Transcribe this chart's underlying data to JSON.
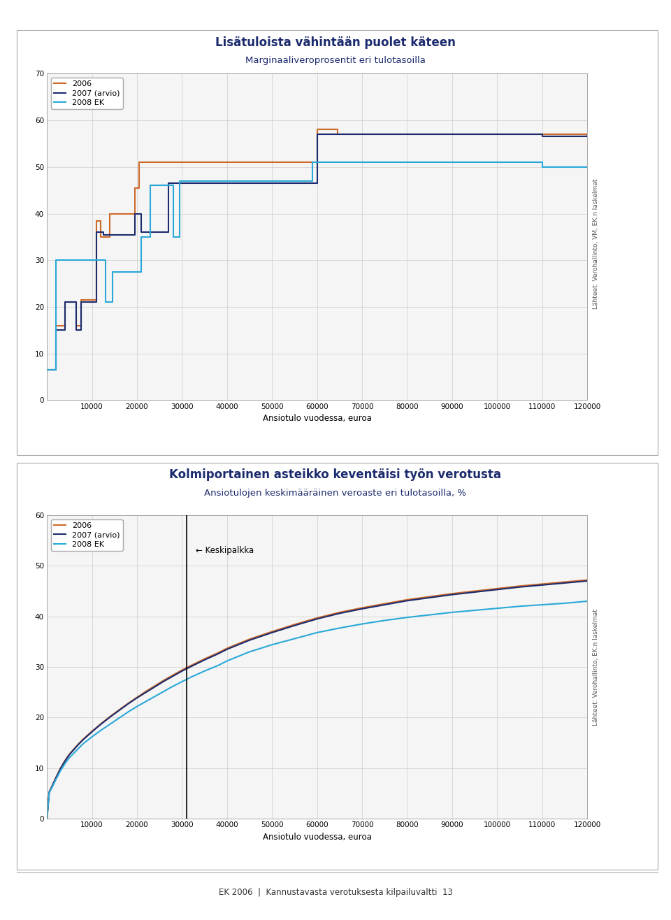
{
  "title1": "Lisätuloista vähintään puolet käteen",
  "subtitle1": "Marginaaliveroprosentit eri tulotasoilla",
  "title2": "Kolmiportainen asteikko keventäisi työn verotusta",
  "subtitle2": "Ansiotulojen keskimääräinen veroaste eri tulotasoilla, %",
  "xlabel": "Ansiotulo vuodessa, euroa",
  "footnote1": "Lähteet: Verohallinto, VM, EK:n laskelmat",
  "footnote2": "Lähteet: Verohallinto, EK:n laskelmat",
  "footer": "EK 2006  |  Kannustavasta verotuksesta kilpailuvaltti  13",
  "color_2006": "#CD6A2A",
  "color_2007": "#1C2B6E",
  "color_2008": "#29A8D8",
  "keskipalkka_x": 31000,
  "bg_color": "#F0F0F0",
  "chart1": {
    "ylim": [
      0,
      70
    ],
    "yticks": [
      0,
      10,
      20,
      30,
      40,
      50,
      60,
      70
    ],
    "xlim": [
      0,
      120000
    ],
    "xticks": [
      0,
      10000,
      20000,
      30000,
      40000,
      50000,
      60000,
      70000,
      80000,
      90000,
      100000,
      110000,
      120000
    ],
    "line_2006_x": [
      0,
      2000,
      2000,
      4000,
      4000,
      6500,
      6500,
      7500,
      7500,
      11000,
      11000,
      12000,
      12000,
      14000,
      14000,
      19500,
      19500,
      20500,
      20500,
      35000,
      35000,
      60000,
      60000,
      64500,
      64500,
      110000,
      110000,
      120000
    ],
    "line_2006_y": [
      6.5,
      6.5,
      16,
      16,
      21,
      21,
      16,
      16,
      21.5,
      21.5,
      38.5,
      38.5,
      35,
      35,
      40,
      40,
      45.5,
      45.5,
      51,
      51,
      51,
      51,
      58,
      58,
      57,
      57,
      57,
      56.5
    ],
    "line_2007_x": [
      0,
      2000,
      2000,
      4000,
      4000,
      6500,
      6500,
      7500,
      7500,
      11000,
      11000,
      12500,
      12500,
      19500,
      19500,
      21000,
      21000,
      27000,
      27000,
      35500,
      35500,
      60000,
      60000,
      64500,
      64500,
      110000,
      110000,
      120000
    ],
    "line_2007_y": [
      6.5,
      6.5,
      15,
      15,
      21,
      21,
      15,
      15,
      21,
      21,
      36,
      36,
      35.5,
      35.5,
      40,
      40,
      36,
      36,
      46.5,
      46.5,
      46.5,
      46.5,
      57,
      57,
      57,
      57,
      56.5,
      56.5
    ],
    "line_2008_x": [
      0,
      2000,
      2000,
      13000,
      13000,
      14500,
      14500,
      21000,
      21000,
      23000,
      23000,
      28000,
      28000,
      29500,
      29500,
      35500,
      35500,
      59000,
      59000,
      64000,
      64000,
      110000,
      110000,
      120000
    ],
    "line_2008_y": [
      6.5,
      6.5,
      30,
      30,
      21,
      21,
      27.5,
      27.5,
      35,
      35,
      46,
      46,
      35,
      35,
      47,
      47,
      47,
      47,
      51,
      51,
      51,
      51,
      50,
      50
    ]
  },
  "chart2": {
    "ylim": [
      0,
      60
    ],
    "yticks": [
      0,
      10,
      20,
      30,
      40,
      50,
      60
    ],
    "xlim": [
      0,
      120000
    ],
    "xticks": [
      0,
      10000,
      20000,
      30000,
      40000,
      50000,
      60000,
      70000,
      80000,
      90000,
      100000,
      110000,
      120000
    ]
  }
}
